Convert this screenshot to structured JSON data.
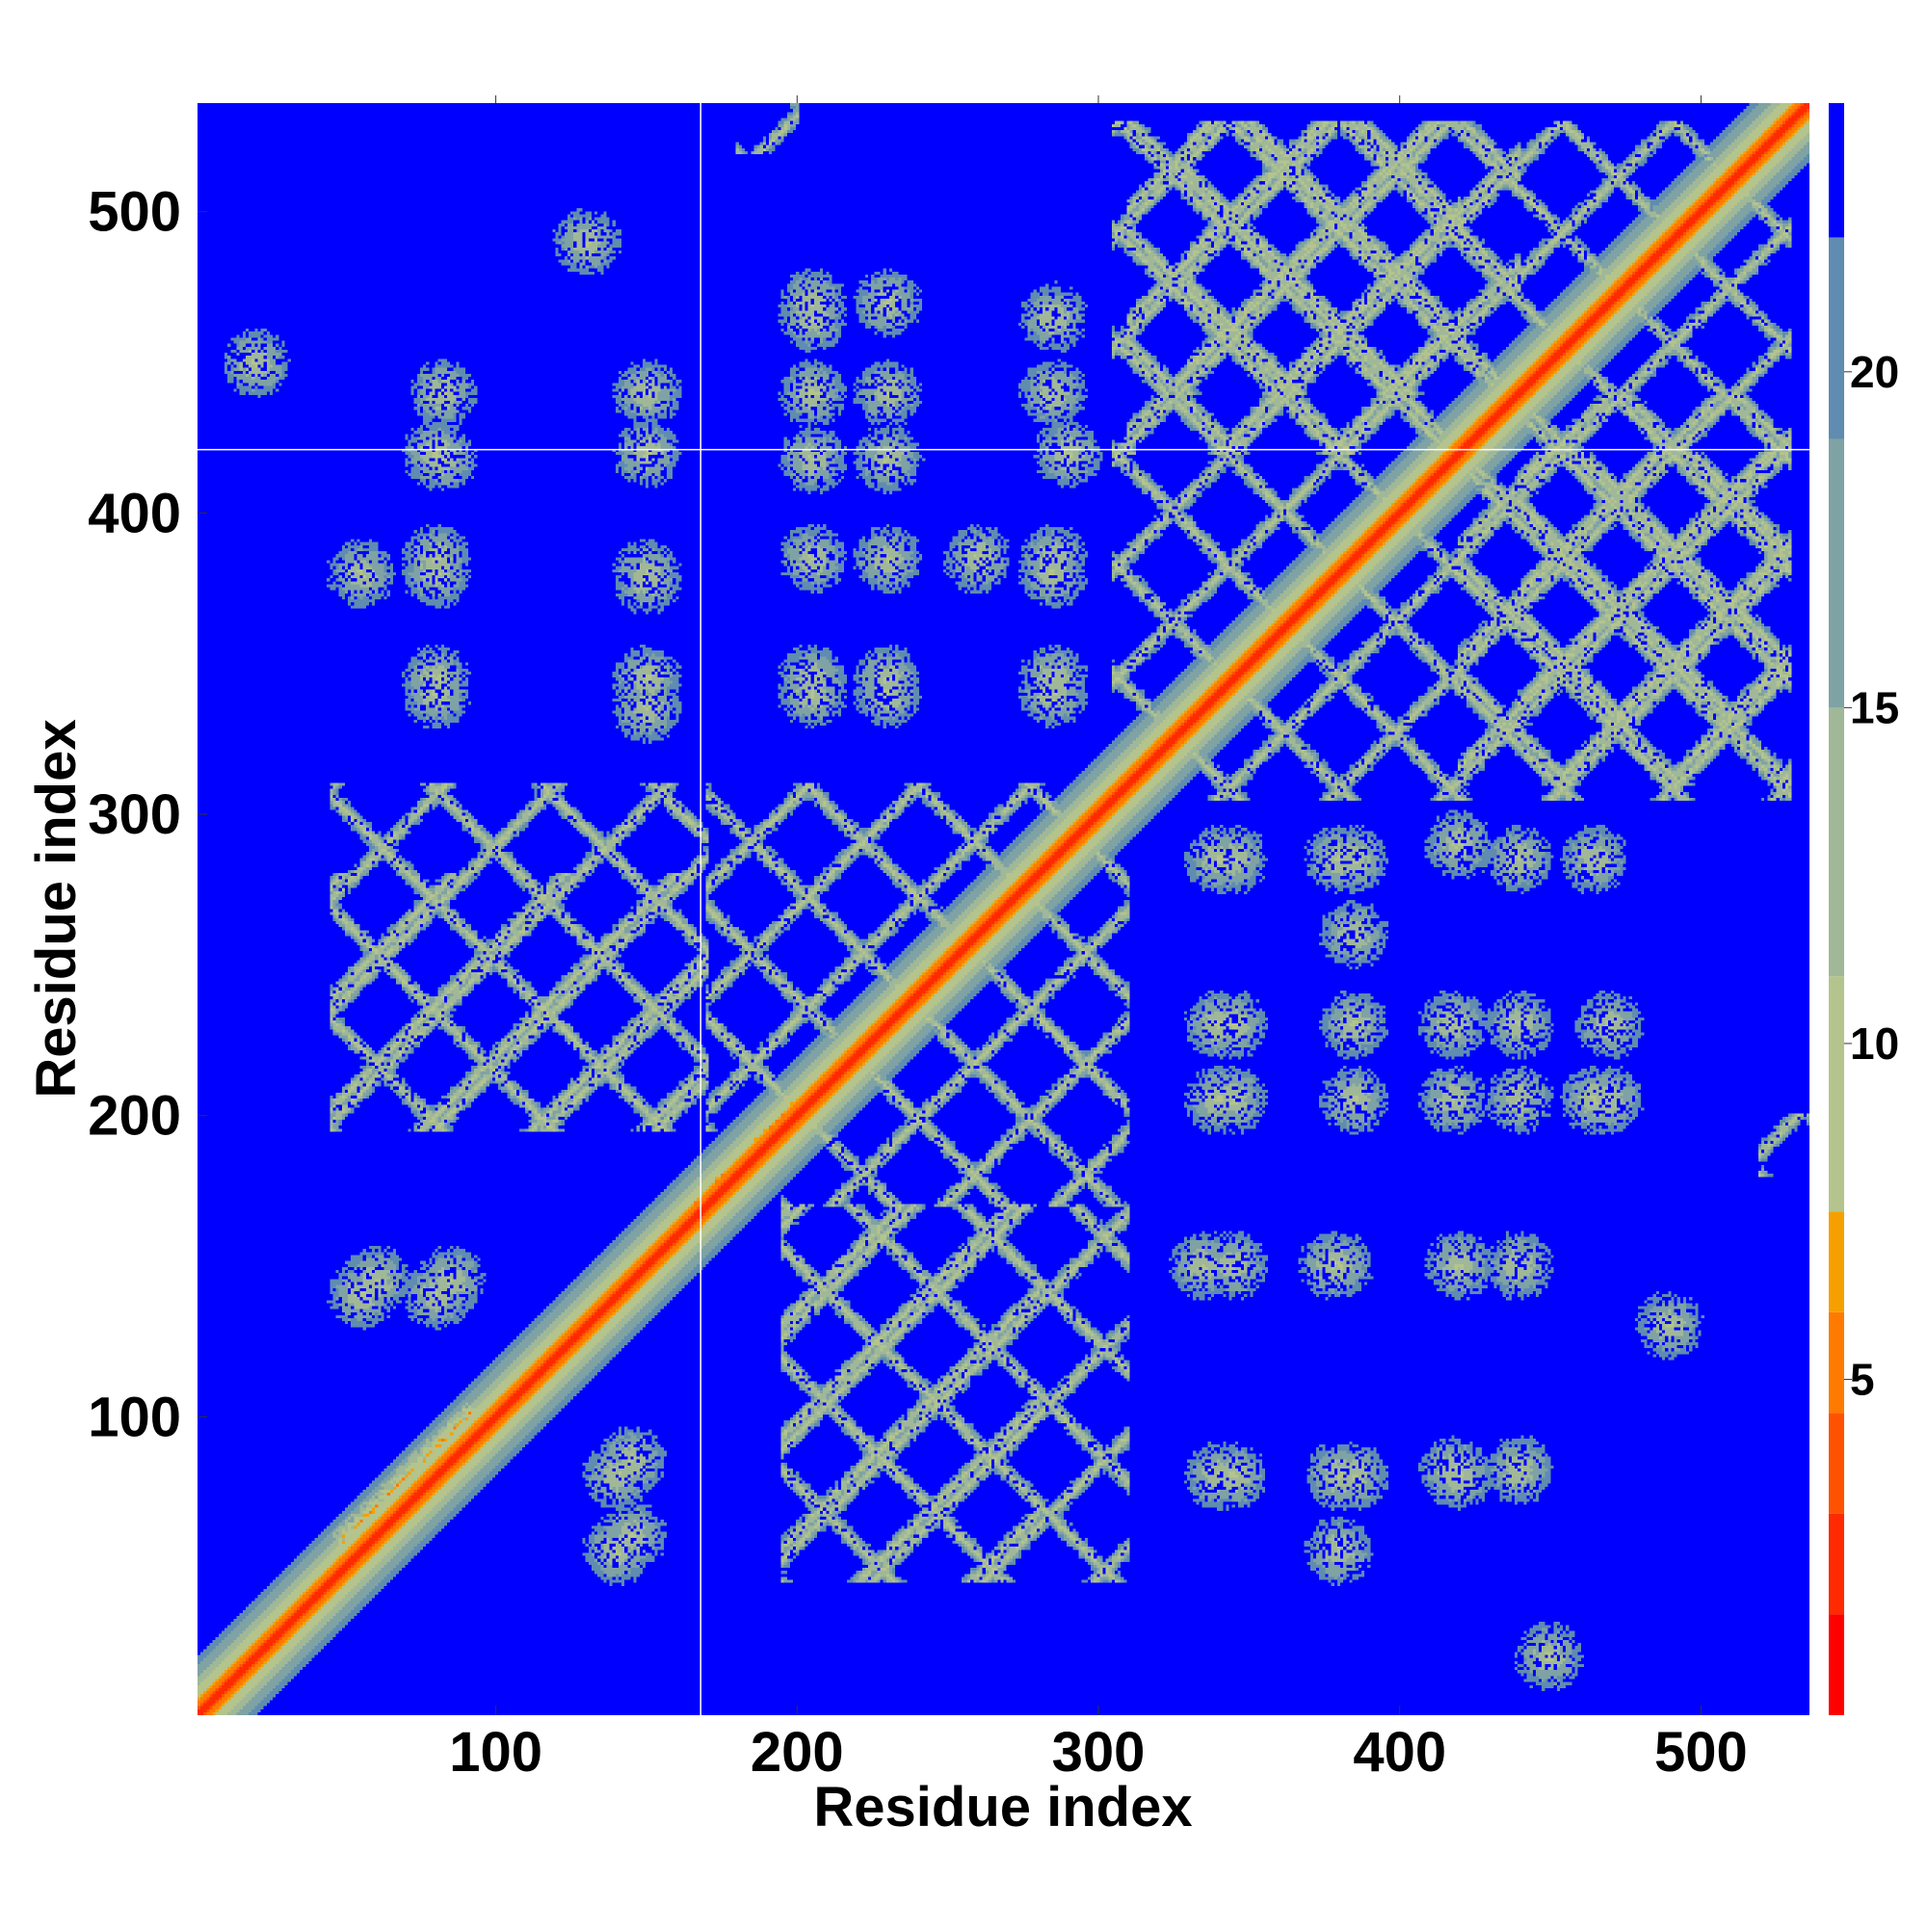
{
  "chart_data": {
    "type": "heatmap",
    "title": "",
    "xlabel": "Residue index",
    "ylabel": "Residue index",
    "xlim": [
      1,
      536
    ],
    "ylim": [
      1,
      536
    ],
    "x_ticks": [
      100,
      200,
      300,
      400,
      500
    ],
    "y_ticks": [
      100,
      200,
      300,
      400,
      500
    ],
    "colorbar": {
      "ticks": [
        5,
        10,
        15,
        20
      ],
      "range": [
        0,
        24
      ],
      "colors": [
        "#ff0000",
        "#ff2a00",
        "#ff5200",
        "#ff7a00",
        "#f5a000",
        "#b4c48c",
        "#a0b898",
        "#7fa2a4",
        "#5f8cb0",
        "#0000ff"
      ],
      "bounds": [
        0,
        1.5,
        3,
        4.5,
        6,
        7.5,
        11,
        15,
        19,
        22,
        24
      ]
    },
    "background_value": 24,
    "domain_boundaries": {
      "x": [
        168
      ],
      "y": [
        421
      ]
    },
    "blocks": [
      {
        "x": [
          170,
          310
        ],
        "y": [
          195,
          310
        ]
      },
      {
        "x": [
          310,
          530
        ],
        "y": [
          305,
          530
        ]
      },
      {
        "x": [
          45,
          170
        ],
        "y": [
          195,
          280
        ]
      },
      {
        "x": [
          195,
          310
        ],
        "y": [
          45,
          170
        ]
      },
      {
        "x": [
          310,
          440
        ],
        "y": [
          420,
          530
        ]
      },
      {
        "x": [
          440,
          530
        ],
        "y": [
          330,
          420
        ]
      },
      {
        "x": [
          520,
          536
        ],
        "y": [
          180,
          200
        ]
      }
    ],
    "contact_spots": [
      [
        80,
        420
      ],
      [
        80,
        385
      ],
      [
        80,
        340
      ],
      [
        150,
        378
      ],
      [
        150,
        420
      ],
      [
        150,
        335
      ],
      [
        150,
        440
      ],
      [
        205,
        440
      ],
      [
        205,
        418
      ],
      [
        205,
        385
      ],
      [
        205,
        340
      ],
      [
        205,
        465
      ],
      [
        230,
        385
      ],
      [
        230,
        340
      ],
      [
        230,
        440
      ],
      [
        260,
        385
      ],
      [
        285,
        385
      ],
      [
        285,
        440
      ],
      [
        285,
        340
      ],
      [
        285,
        465
      ],
      [
        345,
        285
      ],
      [
        345,
        230
      ],
      [
        345,
        205
      ],
      [
        345,
        150
      ],
      [
        345,
        80
      ],
      [
        380,
        285
      ],
      [
        385,
        230
      ],
      [
        385,
        205
      ],
      [
        380,
        150
      ],
      [
        380,
        80
      ],
      [
        380,
        55
      ],
      [
        418,
        230
      ],
      [
        418,
        205
      ],
      [
        420,
        150
      ],
      [
        418,
        82
      ],
      [
        440,
        285
      ],
      [
        440,
        230
      ],
      [
        440,
        205
      ],
      [
        440,
        150
      ],
      [
        440,
        82
      ],
      [
        465,
        285
      ],
      [
        470,
        230
      ],
      [
        470,
        205
      ],
      [
        140,
        80
      ],
      [
        140,
        55
      ],
      [
        60,
        145
      ],
      [
        85,
        145
      ],
      [
        20,
        450
      ],
      [
        55,
        380
      ],
      [
        290,
        420
      ],
      [
        130,
        490
      ]
    ],
    "crossings": [
      [
        70,
        80,
        18
      ],
      [
        180,
        185,
        15
      ],
      [
        420,
        420,
        18
      ],
      [
        150,
        150,
        20
      ]
    ]
  }
}
